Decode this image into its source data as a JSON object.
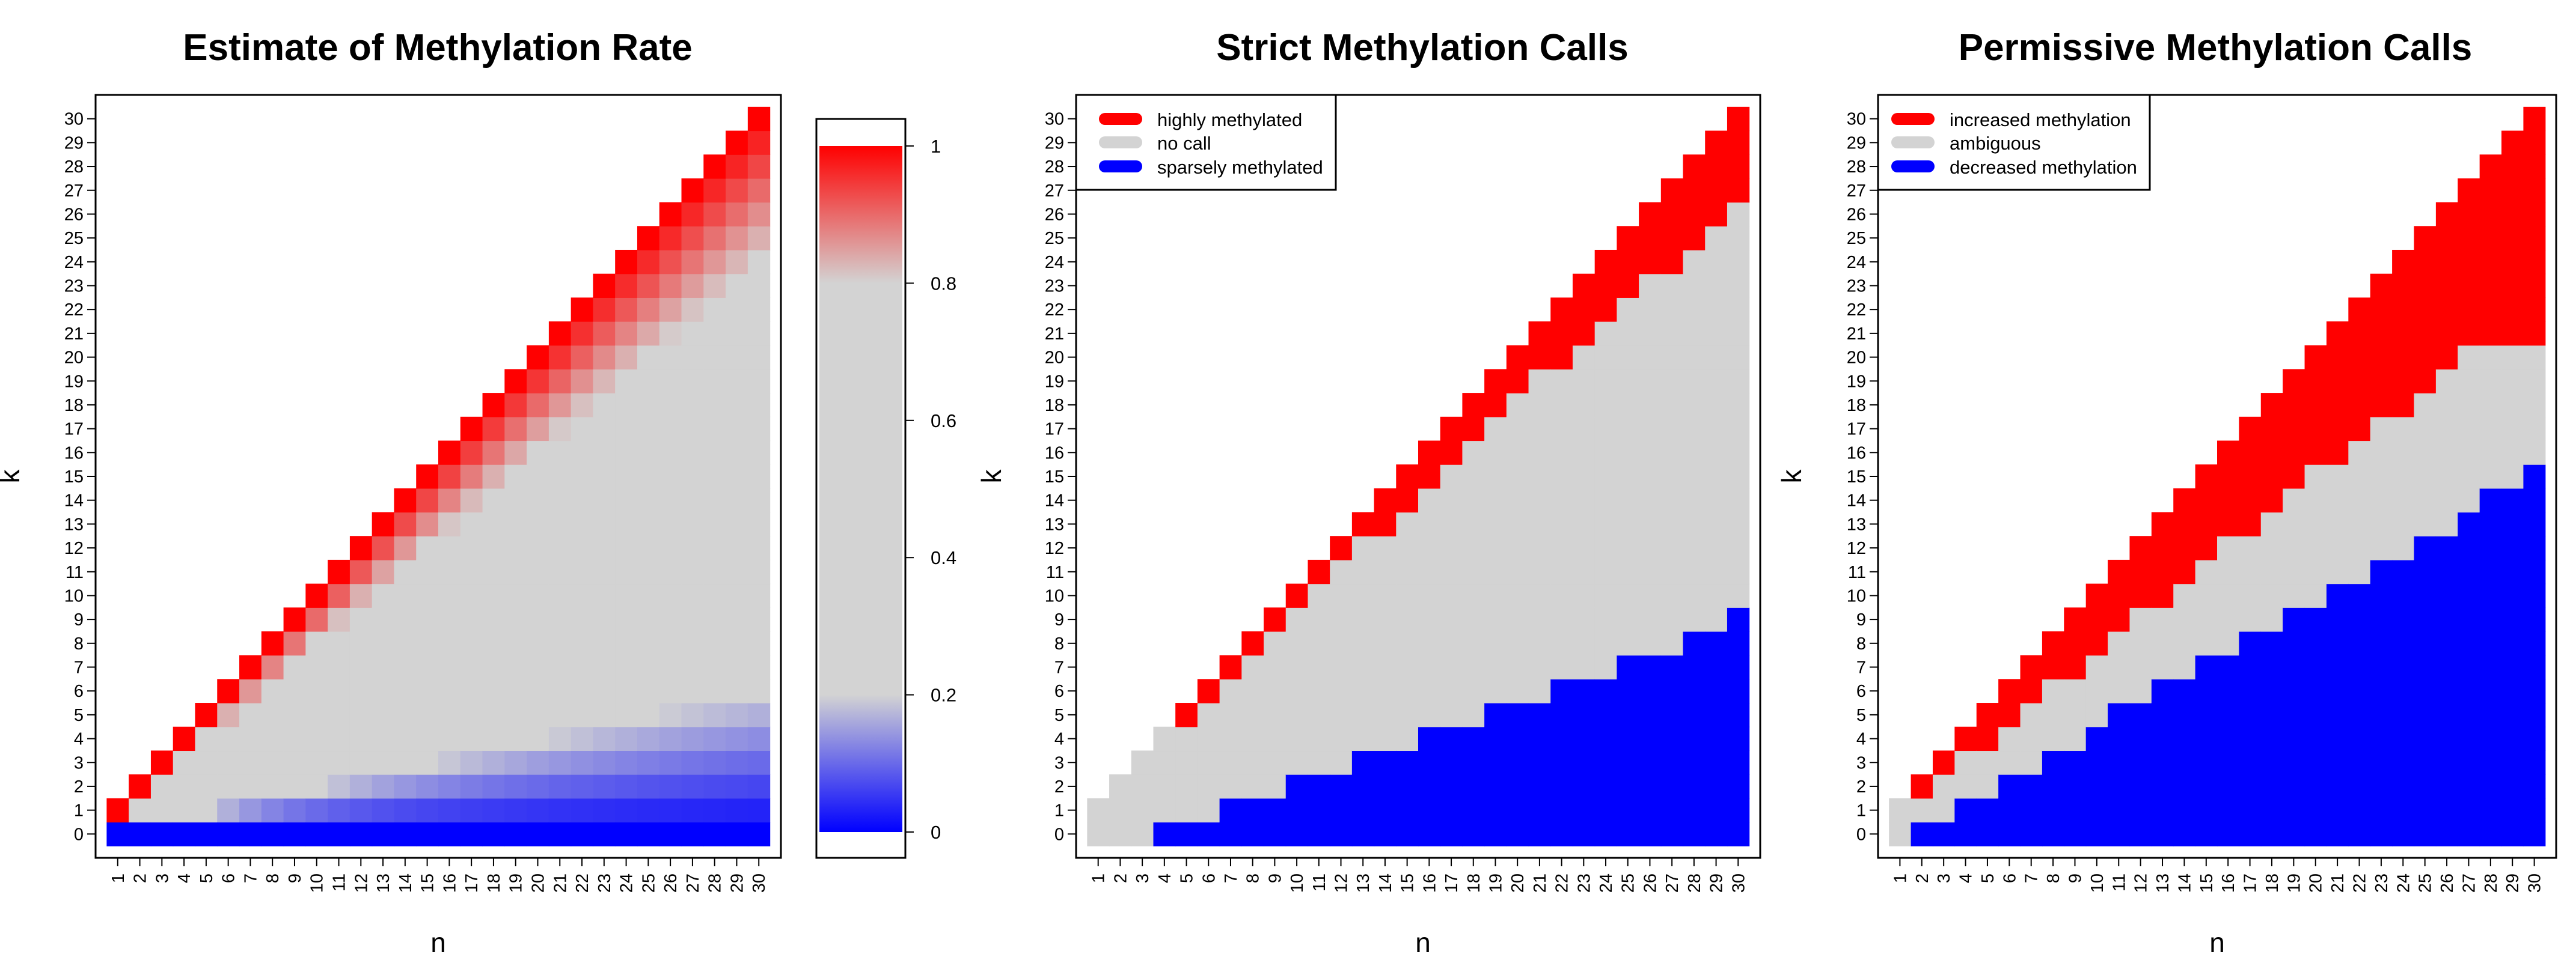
{
  "colors": {
    "red": "#FF0000",
    "gray": "#D3D3D3",
    "blue": "#0000FF"
  },
  "chart_data": [
    {
      "type": "heatmap",
      "title": "Estimate of Methylation Rate",
      "xlabel": "n",
      "ylabel": "k",
      "x_ticks": [
        1,
        2,
        3,
        4,
        5,
        6,
        7,
        8,
        9,
        10,
        11,
        12,
        13,
        14,
        15,
        16,
        17,
        18,
        19,
        20,
        21,
        22,
        23,
        24,
        25,
        26,
        27,
        28,
        29,
        30
      ],
      "y_ticks": [
        0,
        1,
        2,
        3,
        4,
        5,
        6,
        7,
        8,
        9,
        10,
        11,
        12,
        13,
        14,
        15,
        16,
        17,
        18,
        19,
        20,
        21,
        22,
        23,
        24,
        25,
        26,
        27,
        28,
        29,
        30
      ],
      "value": "k / n (estimated methylation rate), cells defined for k <= n",
      "colorbar": {
        "ticks": [
          0,
          0.2,
          0.4,
          0.6,
          0.8,
          1
        ],
        "range": [
          0,
          1
        ],
        "gradient": [
          {
            "value": 0,
            "color": "#0000FF"
          },
          {
            "value": 0.2,
            "color": "#D3D3D3"
          },
          {
            "value": 0.8,
            "color": "#D3D3D3"
          },
          {
            "value": 1,
            "color": "#FF0000"
          }
        ]
      }
    },
    {
      "type": "heatmap",
      "title": "Strict Methylation Calls",
      "xlabel": "n",
      "ylabel": "k",
      "x_ticks": [
        1,
        2,
        3,
        4,
        5,
        6,
        7,
        8,
        9,
        10,
        11,
        12,
        13,
        14,
        15,
        16,
        17,
        18,
        19,
        20,
        21,
        22,
        23,
        24,
        25,
        26,
        27,
        28,
        29,
        30
      ],
      "y_ticks": [
        0,
        1,
        2,
        3,
        4,
        5,
        6,
        7,
        8,
        9,
        10,
        11,
        12,
        13,
        14,
        15,
        16,
        17,
        18,
        19,
        20,
        21,
        22,
        23,
        24,
        25,
        26,
        27,
        28,
        29,
        30
      ],
      "legend": [
        {
          "label": "highly methylated",
          "color": "#FF0000"
        },
        {
          "label": "no call",
          "color": "#D3D3D3"
        },
        {
          "label": "sparsely methylated",
          "color": "#0000FF"
        }
      ],
      "legend_position": "top-left",
      "red_k_min": [
        null,
        null,
        null,
        null,
        5,
        6,
        7,
        8,
        9,
        10,
        11,
        12,
        13,
        13,
        14,
        15,
        16,
        17,
        18,
        19,
        20,
        20,
        21,
        22,
        23,
        24,
        24,
        25,
        26,
        27
      ],
      "blue_k_max": [
        null,
        null,
        null,
        0,
        0,
        0,
        1,
        1,
        1,
        2,
        2,
        2,
        3,
        3,
        3,
        4,
        4,
        4,
        5,
        5,
        5,
        6,
        6,
        6,
        7,
        7,
        7,
        8,
        8,
        9
      ]
    },
    {
      "type": "heatmap",
      "title": "Permissive Methylation Calls",
      "xlabel": "n",
      "ylabel": "k",
      "x_ticks": [
        1,
        2,
        3,
        4,
        5,
        6,
        7,
        8,
        9,
        10,
        11,
        12,
        13,
        14,
        15,
        16,
        17,
        18,
        19,
        20,
        21,
        22,
        23,
        24,
        25,
        26,
        27,
        28,
        29,
        30
      ],
      "y_ticks": [
        0,
        1,
        2,
        3,
        4,
        5,
        6,
        7,
        8,
        9,
        10,
        11,
        12,
        13,
        14,
        15,
        16,
        17,
        18,
        19,
        20,
        21,
        22,
        23,
        24,
        25,
        26,
        27,
        28,
        29,
        30
      ],
      "legend": [
        {
          "label": "increased methylation",
          "color": "#FF0000"
        },
        {
          "label": "ambiguous",
          "color": "#D3D3D3"
        },
        {
          "label": "decreased methylation",
          "color": "#0000FF"
        }
      ],
      "legend_position": "top-left",
      "red_k_min": [
        null,
        2,
        3,
        4,
        4,
        5,
        6,
        7,
        7,
        8,
        9,
        10,
        10,
        11,
        12,
        13,
        13,
        14,
        15,
        16,
        16,
        17,
        18,
        18,
        19,
        20,
        21,
        21,
        21,
        21
      ],
      "blue_k_max": [
        null,
        0,
        0,
        1,
        1,
        2,
        2,
        3,
        3,
        4,
        5,
        5,
        6,
        6,
        7,
        7,
        8,
        8,
        9,
        9,
        10,
        10,
        11,
        11,
        12,
        12,
        13,
        14,
        14,
        15
      ]
    }
  ]
}
